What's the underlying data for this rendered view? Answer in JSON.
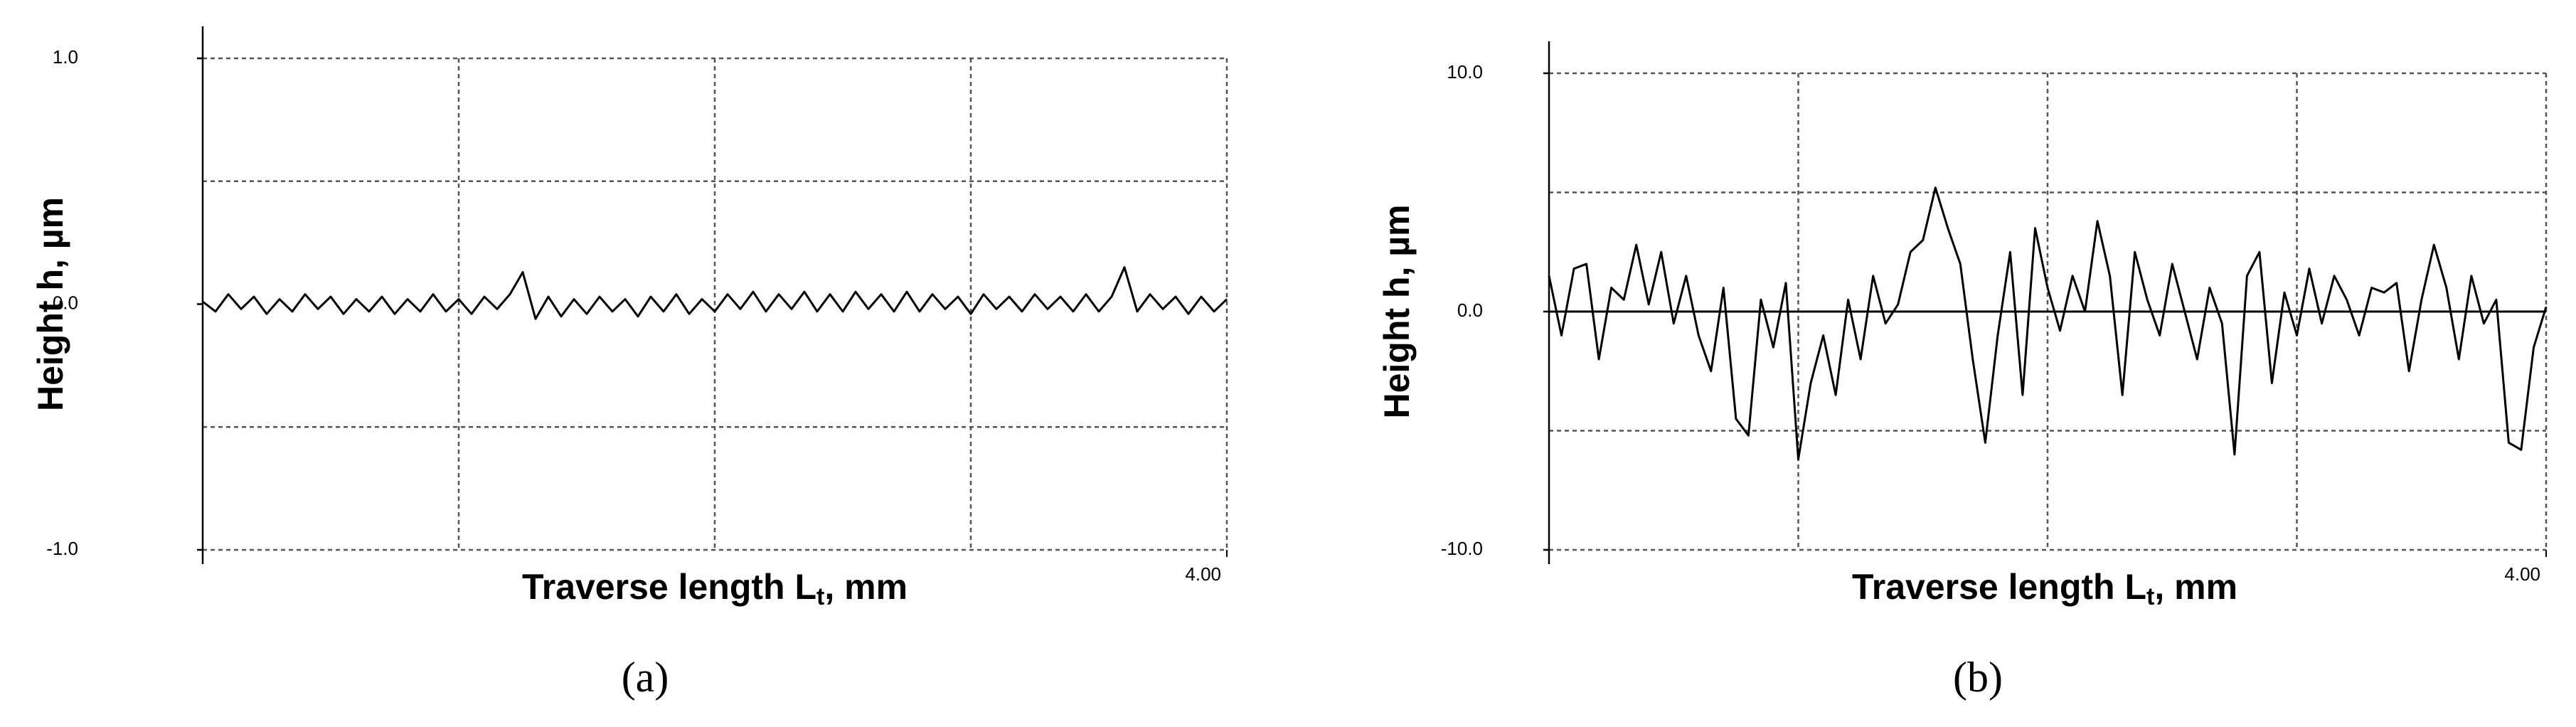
{
  "chart_data": [
    {
      "type": "line",
      "panel_label": "(a)",
      "ylabel": "Height h, µm",
      "xlabel": {
        "main": "Traverse length L",
        "sub": "t",
        "suffix": ", mm"
      },
      "xlim": [
        0,
        4
      ],
      "xticks": [
        {
          "value": 4,
          "label": "4.00"
        }
      ],
      "xgrid": [
        1,
        2,
        3,
        4
      ],
      "ylim": [
        -1,
        1
      ],
      "yticks": [
        {
          "value": -1,
          "label": "-1.0"
        },
        {
          "value": 0,
          "label": "0.0"
        },
        {
          "value": 1,
          "label": "1.0"
        }
      ],
      "ygrid": [
        -1,
        -0.5,
        0.5,
        1
      ],
      "grid": true,
      "zero_line": false,
      "x": [
        0,
        0.05,
        0.1,
        0.15,
        0.2,
        0.25,
        0.3,
        0.35,
        0.4,
        0.45,
        0.5,
        0.55,
        0.6,
        0.65,
        0.7,
        0.75,
        0.8,
        0.85,
        0.9,
        0.95,
        1,
        1.05,
        1.1,
        1.15,
        1.2,
        1.25,
        1.3,
        1.35,
        1.4,
        1.45,
        1.5,
        1.55,
        1.6,
        1.65,
        1.7,
        1.75,
        1.8,
        1.85,
        1.9,
        1.95,
        2,
        2.05,
        2.1,
        2.15,
        2.2,
        2.25,
        2.3,
        2.35,
        2.4,
        2.45,
        2.5,
        2.55,
        2.6,
        2.65,
        2.7,
        2.75,
        2.8,
        2.85,
        2.9,
        2.95,
        3,
        3.05,
        3.1,
        3.15,
        3.2,
        3.25,
        3.3,
        3.35,
        3.4,
        3.45,
        3.5,
        3.55,
        3.6,
        3.65,
        3.7,
        3.75,
        3.8,
        3.85,
        3.9,
        3.95,
        4
      ],
      "series": [
        {
          "color": "#000000",
          "values": [
            0.01,
            -0.03,
            0.04,
            -0.02,
            0.03,
            -0.04,
            0.02,
            -0.03,
            0.04,
            -0.02,
            0.03,
            -0.04,
            0.02,
            -0.03,
            0.03,
            -0.04,
            0.02,
            -0.03,
            0.04,
            -0.03,
            0.02,
            -0.04,
            0.03,
            -0.02,
            0.04,
            0.13,
            -0.06,
            0.03,
            -0.05,
            0.02,
            -0.04,
            0.03,
            -0.03,
            0.02,
            -0.05,
            0.03,
            -0.03,
            0.04,
            -0.04,
            0.02,
            -0.03,
            0.04,
            -0.02,
            0.05,
            -0.03,
            0.04,
            -0.02,
            0.05,
            -0.03,
            0.04,
            -0.03,
            0.05,
            -0.02,
            0.04,
            -0.03,
            0.05,
            -0.03,
            0.04,
            -0.02,
            0.03,
            -0.04,
            0.04,
            -0.02,
            0.03,
            -0.03,
            0.04,
            -0.02,
            0.03,
            -0.03,
            0.04,
            -0.03,
            0.03,
            0.15,
            -0.03,
            0.04,
            -0.02,
            0.03,
            -0.04,
            0.03,
            -0.03,
            0.02
          ]
        }
      ]
    },
    {
      "type": "line",
      "panel_label": "(b)",
      "ylabel": "Height h, µm",
      "xlabel": {
        "main": "Traverse length L",
        "sub": "t",
        "suffix": ", mm"
      },
      "xlim": [
        0,
        4
      ],
      "xticks": [
        {
          "value": 4,
          "label": "4.00"
        }
      ],
      "xgrid": [
        1,
        2,
        3,
        4
      ],
      "ylim": [
        -10,
        10
      ],
      "yticks": [
        {
          "value": -10,
          "label": "-10.0"
        },
        {
          "value": 0,
          "label": "0.0"
        },
        {
          "value": 10,
          "label": "10.0"
        }
      ],
      "ygrid": [
        -10,
        -5,
        5,
        10
      ],
      "grid": true,
      "zero_line": true,
      "x": [
        0,
        0.05,
        0.1,
        0.15,
        0.2,
        0.25,
        0.3,
        0.35,
        0.4,
        0.45,
        0.5,
        0.55,
        0.6,
        0.65,
        0.7,
        0.75,
        0.8,
        0.85,
        0.9,
        0.95,
        1,
        1.05,
        1.1,
        1.15,
        1.2,
        1.25,
        1.3,
        1.35,
        1.4,
        1.45,
        1.5,
        1.55,
        1.6,
        1.65,
        1.7,
        1.75,
        1.8,
        1.85,
        1.9,
        1.95,
        2,
        2.05,
        2.1,
        2.15,
        2.2,
        2.25,
        2.3,
        2.35,
        2.4,
        2.45,
        2.5,
        2.55,
        2.6,
        2.65,
        2.7,
        2.75,
        2.8,
        2.85,
        2.9,
        2.95,
        3,
        3.05,
        3.1,
        3.15,
        3.2,
        3.25,
        3.3,
        3.35,
        3.4,
        3.45,
        3.5,
        3.55,
        3.6,
        3.65,
        3.7,
        3.75,
        3.8,
        3.85,
        3.9,
        3.95,
        4
      ],
      "series": [
        {
          "color": "#000000",
          "values": [
            1.5,
            -1,
            1.8,
            2,
            -2,
            1,
            0.5,
            2.8,
            0.3,
            2.5,
            -0.5,
            1.5,
            -1,
            -2.5,
            1,
            -4.5,
            -5.2,
            0.5,
            -1.5,
            1.2,
            -6.2,
            -3,
            -1,
            -3.5,
            0.5,
            -2,
            1.5,
            -0.5,
            0.3,
            2.5,
            3,
            5.2,
            3.5,
            2,
            -2,
            -5.5,
            -1,
            2.5,
            -3.5,
            3.5,
            1,
            -0.8,
            1.5,
            0,
            3.8,
            1.5,
            -3.5,
            2.5,
            0.5,
            -1,
            2,
            0,
            -2,
            1,
            -0.5,
            -6,
            1.5,
            2.5,
            -3,
            0.8,
            -1,
            1.8,
            -0.5,
            1.5,
            0.5,
            -1,
            1,
            0.8,
            1.2,
            -2.5,
            0.5,
            2.8,
            1,
            -2,
            1.5,
            -0.5,
            0.5,
            -5.5,
            -5.8,
            -1.5,
            0.2
          ]
        }
      ]
    }
  ]
}
